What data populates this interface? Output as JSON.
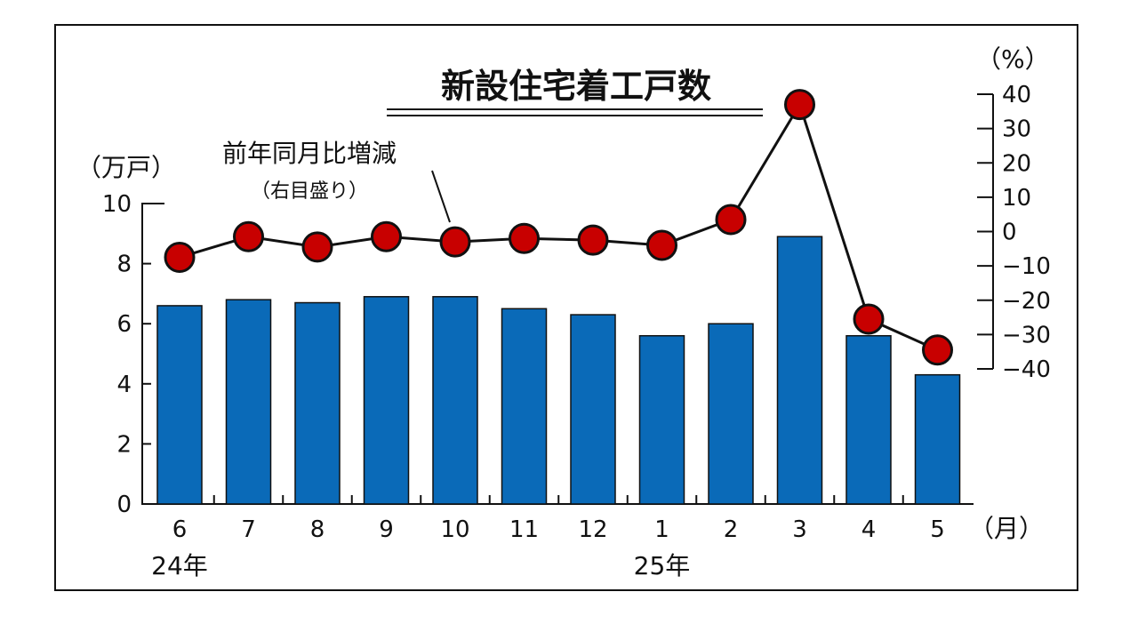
{
  "chart_data": {
    "type": "bar+line",
    "title": "新設住宅着工戸数",
    "categories": [
      "6",
      "7",
      "8",
      "9",
      "10",
      "11",
      "12",
      "1",
      "2",
      "3",
      "4",
      "5"
    ],
    "x_unit": "（月）",
    "year_labels": [
      {
        "text": "24年",
        "category_index": 0
      },
      {
        "text": "25年",
        "category_index": 7
      }
    ],
    "bars": {
      "unit_label": "（万戸）",
      "values": [
        6.6,
        6.8,
        6.7,
        6.9,
        6.9,
        6.5,
        6.3,
        5.6,
        6.0,
        8.9,
        5.6,
        4.3
      ],
      "ylim": [
        0,
        10
      ],
      "ticks": [
        0,
        2,
        4,
        6,
        8,
        10
      ],
      "color": "#0a6ab8"
    },
    "line": {
      "label": "前年同月比増減",
      "sublabel": "（右目盛り）",
      "unit_label": "（%）",
      "values": [
        -7.5,
        -1.5,
        -4.5,
        -1.5,
        -3.0,
        -2.0,
        -2.5,
        -4.0,
        3.5,
        37.0,
        -25.5,
        -34.5
      ],
      "ylim": [
        -40,
        40
      ],
      "ticks": [
        40,
        30,
        20,
        10,
        0,
        -10,
        -20,
        -30,
        -40
      ],
      "tick_labels": [
        "40",
        "30",
        "20",
        "10",
        "0",
        "−10",
        "−20",
        "−30",
        "−40"
      ],
      "color": "#c80000"
    }
  }
}
